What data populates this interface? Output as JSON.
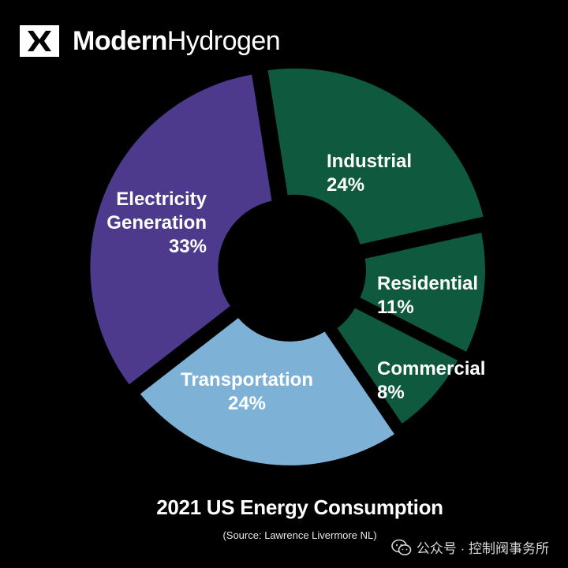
{
  "brand": {
    "name_bold": "Modern",
    "name_light": "Hydrogen",
    "logo_icon": "modern-hydrogen-logo-icon"
  },
  "chart_data": {
    "type": "pie",
    "title": "2021 US Energy Consumption",
    "source": "(Source: Lawrence Livermore NL)",
    "donut": true,
    "slices": [
      {
        "label_lines": [
          "Industrial",
          "24%"
        ],
        "value": 24,
        "color": "#0f5a3e"
      },
      {
        "label_lines": [
          "Residential",
          "11%"
        ],
        "value": 11,
        "color": "#0f5a3e"
      },
      {
        "label_lines": [
          "Commercial",
          "8%"
        ],
        "value": 8,
        "color": "#0f5a3e"
      },
      {
        "label_lines": [
          "Transportation",
          "24%"
        ],
        "value": 24,
        "color": "#7db1d6"
      },
      {
        "label_lines": [
          "Electricity",
          "Generation",
          "33%"
        ],
        "value": 33,
        "color": "#4e3a8c"
      }
    ]
  },
  "watermark": {
    "text": "公众号 · 控制阀事务所",
    "icon": "wechat-icon"
  }
}
